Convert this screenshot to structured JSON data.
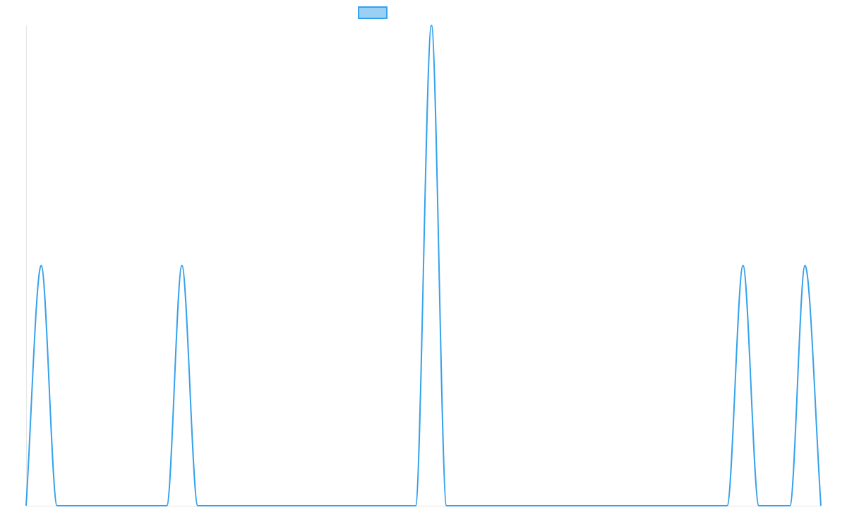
{
  "chart_data": {
    "type": "line",
    "title": "",
    "xlabel": "",
    "ylabel": "",
    "legend_position": "top-center",
    "grid": false,
    "xlim": [
      0,
      1
    ],
    "ylim": [
      0,
      2
    ],
    "series": [
      {
        "name": "",
        "color": "#36a2eb",
        "fill_color": "#9ad0f5",
        "points": [
          [
            0.0,
            0
          ],
          [
            0.019,
            1
          ],
          [
            0.039,
            0
          ],
          [
            0.177,
            0
          ],
          [
            0.196,
            1
          ],
          [
            0.216,
            0
          ],
          [
            0.49,
            0
          ],
          [
            0.51,
            2
          ],
          [
            0.529,
            0
          ],
          [
            0.882,
            0
          ],
          [
            0.902,
            1
          ],
          [
            0.922,
            0
          ],
          [
            0.961,
            0
          ],
          [
            0.98,
            1
          ],
          [
            1.0,
            0
          ]
        ]
      }
    ]
  }
}
